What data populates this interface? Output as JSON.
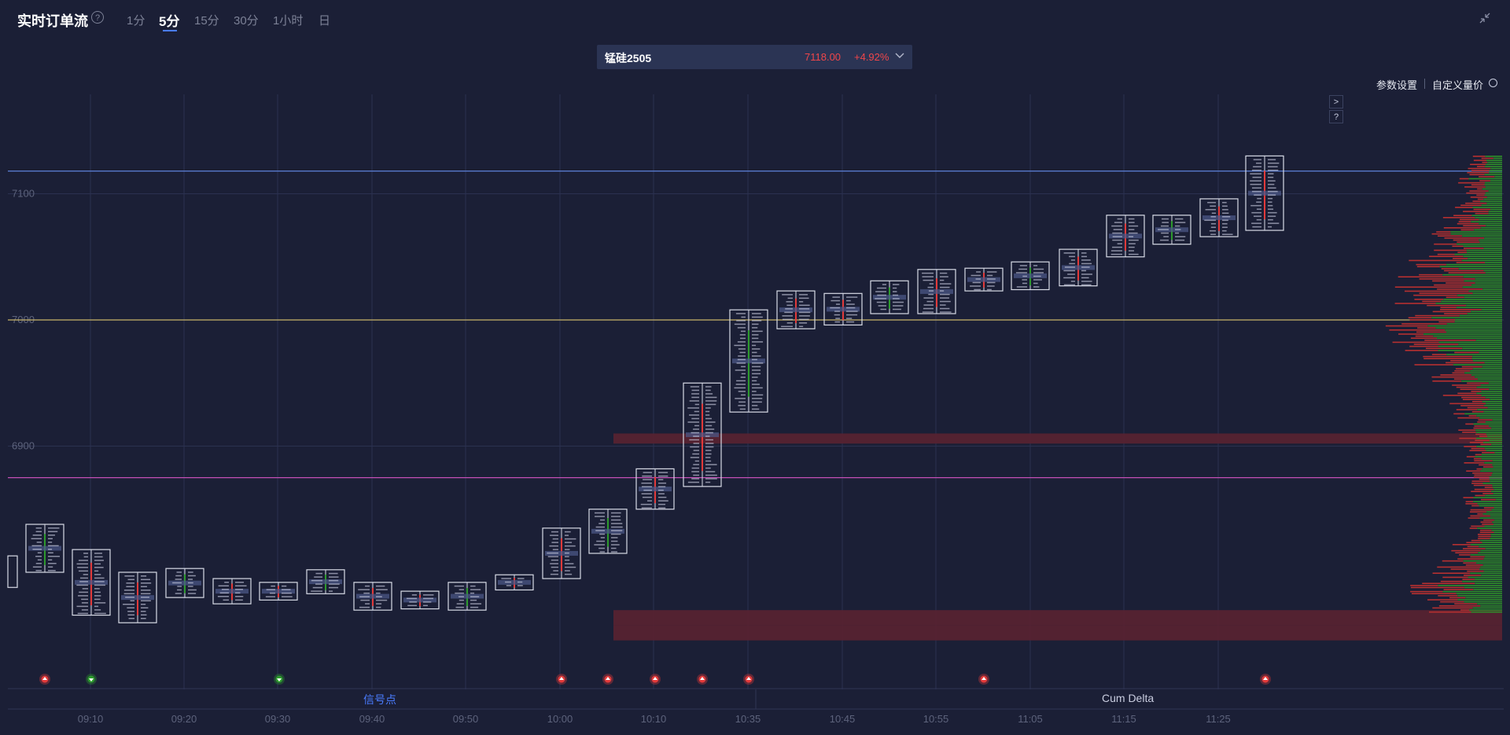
{
  "header": {
    "title": "实时订单流",
    "help_glyph": "?",
    "timeframes": [
      "1分",
      "5分",
      "15分",
      "30分",
      "1小时",
      "日"
    ],
    "active_timeframe": "5分"
  },
  "symbol": {
    "name": "锰硅2505",
    "price": "7118.00",
    "change": "+4.92%"
  },
  "toolbar": {
    "param_settings": "参数设置",
    "custom_volume_price": "自定义量价"
  },
  "side_buttons": {
    "expand": ">",
    "help": "?"
  },
  "bottom_tabs": {
    "signals": "信号点",
    "cum_delta": "Cum Delta"
  },
  "colors": {
    "background": "#1b1f36",
    "up": "#e23a3a",
    "down": "#2d9a2d",
    "accent": "#4a7cff",
    "line_top": "#5b7fd6",
    "line_mid": "#c8b46a",
    "line_low": "#c44fb6"
  },
  "chart_data": {
    "type": "footprint",
    "y_ticks": [
      6900,
      7000,
      7100
    ],
    "y_axis_partial_label": "",
    "x_ticks": [
      "09:10",
      "09:20",
      "09:30",
      "09:40",
      "09:50",
      "10:00",
      "10:10",
      "10:35",
      "10:45",
      "10:55",
      "11:05",
      "11:15",
      "11:25"
    ],
    "horizontal_lines": [
      {
        "price": 7118,
        "color": "#5b7fd6"
      },
      {
        "price": 7000,
        "color": "#c8b46a"
      },
      {
        "price": 6875,
        "color": "#c44fb6"
      }
    ],
    "candles": [
      {
        "x": 16,
        "high": 6813,
        "low": 6788
      },
      {
        "x": 57,
        "high": 6838,
        "low": 6800
      },
      {
        "x": 116,
        "high": 6818,
        "low": 6766
      },
      {
        "x": 175,
        "high": 6800,
        "low": 6760
      },
      {
        "x": 235,
        "high": 6803,
        "low": 6780
      },
      {
        "x": 295,
        "high": 6795,
        "low": 6775
      },
      {
        "x": 354,
        "high": 6792,
        "low": 6778
      },
      {
        "x": 414,
        "high": 6802,
        "low": 6783
      },
      {
        "x": 474,
        "high": 6792,
        "low": 6770
      },
      {
        "x": 534,
        "high": 6785,
        "low": 6771
      },
      {
        "x": 594,
        "high": 6792,
        "low": 6770
      },
      {
        "x": 654,
        "high": 6798,
        "low": 6786
      },
      {
        "x": 714,
        "high": 6835,
        "low": 6795
      },
      {
        "x": 773,
        "high": 6850,
        "low": 6815
      },
      {
        "x": 833,
        "high": 6882,
        "low": 6850
      },
      {
        "x": 893,
        "high": 6950,
        "low": 6868
      },
      {
        "x": 952,
        "high": 7008,
        "low": 6927
      },
      {
        "x": 1012,
        "high": 7023,
        "low": 6993
      },
      {
        "x": 1072,
        "high": 7021,
        "low": 6996
      },
      {
        "x": 1131,
        "high": 7031,
        "low": 7005
      },
      {
        "x": 1191,
        "high": 7040,
        "low": 7005
      },
      {
        "x": 1251,
        "high": 7041,
        "low": 7023
      },
      {
        "x": 1310,
        "high": 7046,
        "low": 7024
      },
      {
        "x": 1371,
        "high": 7056,
        "low": 7027
      },
      {
        "x": 1431,
        "high": 7083,
        "low": 7050
      },
      {
        "x": 1490,
        "high": 7083,
        "low": 7060
      },
      {
        "x": 1550,
        "high": 7096,
        "low": 7066
      },
      {
        "x": 1608,
        "high": 7130,
        "low": 7071
      }
    ],
    "signals": [
      {
        "x": 57,
        "kind": "up",
        "color": "#e23a3a"
      },
      {
        "x": 116,
        "kind": "down",
        "color": "#2d9a2d"
      },
      {
        "x": 355,
        "kind": "down",
        "color": "#2d9a2d"
      },
      {
        "x": 714,
        "kind": "up",
        "color": "#e23a3a"
      },
      {
        "x": 773,
        "kind": "up",
        "color": "#e23a3a"
      },
      {
        "x": 833,
        "kind": "up",
        "color": "#e23a3a"
      },
      {
        "x": 893,
        "kind": "up",
        "color": "#e23a3a"
      },
      {
        "x": 952,
        "kind": "up",
        "color": "#e23a3a"
      },
      {
        "x": 1251,
        "kind": "up",
        "color": "#e23a3a"
      },
      {
        "x": 1609,
        "kind": "up",
        "color": "#e23a3a"
      }
    ],
    "heavy_zones": [
      {
        "from": 6910,
        "to": 6902
      },
      {
        "from": 6770,
        "to": 6758
      },
      {
        "from": 6758,
        "to": 6746
      }
    ]
  }
}
